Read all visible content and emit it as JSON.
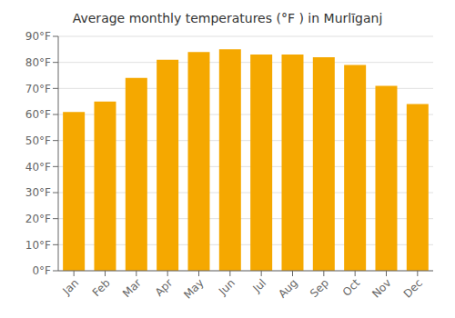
{
  "chart_data": {
    "type": "bar",
    "title": "Average monthly temperatures (°F ) in Murlīganj",
    "categories": [
      "Jan",
      "Feb",
      "Mar",
      "Apr",
      "May",
      "Jun",
      "Jul",
      "Aug",
      "Sep",
      "Oct",
      "Nov",
      "Dec"
    ],
    "values": [
      61,
      65,
      74,
      81,
      84,
      85,
      83,
      83,
      82,
      79,
      71,
      64
    ],
    "color": "#F5A800",
    "ylim": [
      0,
      90
    ],
    "yticks": [
      {
        "value": 0,
        "label": "0°F"
      },
      {
        "value": 10,
        "label": "10°F"
      },
      {
        "value": 20,
        "label": "20°F"
      },
      {
        "value": 30,
        "label": "30°F"
      },
      {
        "value": 40,
        "label": "40°F"
      },
      {
        "value": 50,
        "label": "50°F"
      },
      {
        "value": 60,
        "label": "60°F"
      },
      {
        "value": 70,
        "label": "70°F"
      },
      {
        "value": 80,
        "label": "80°F"
      },
      {
        "value": 90,
        "label": "90°F"
      }
    ],
    "grid": true
  }
}
